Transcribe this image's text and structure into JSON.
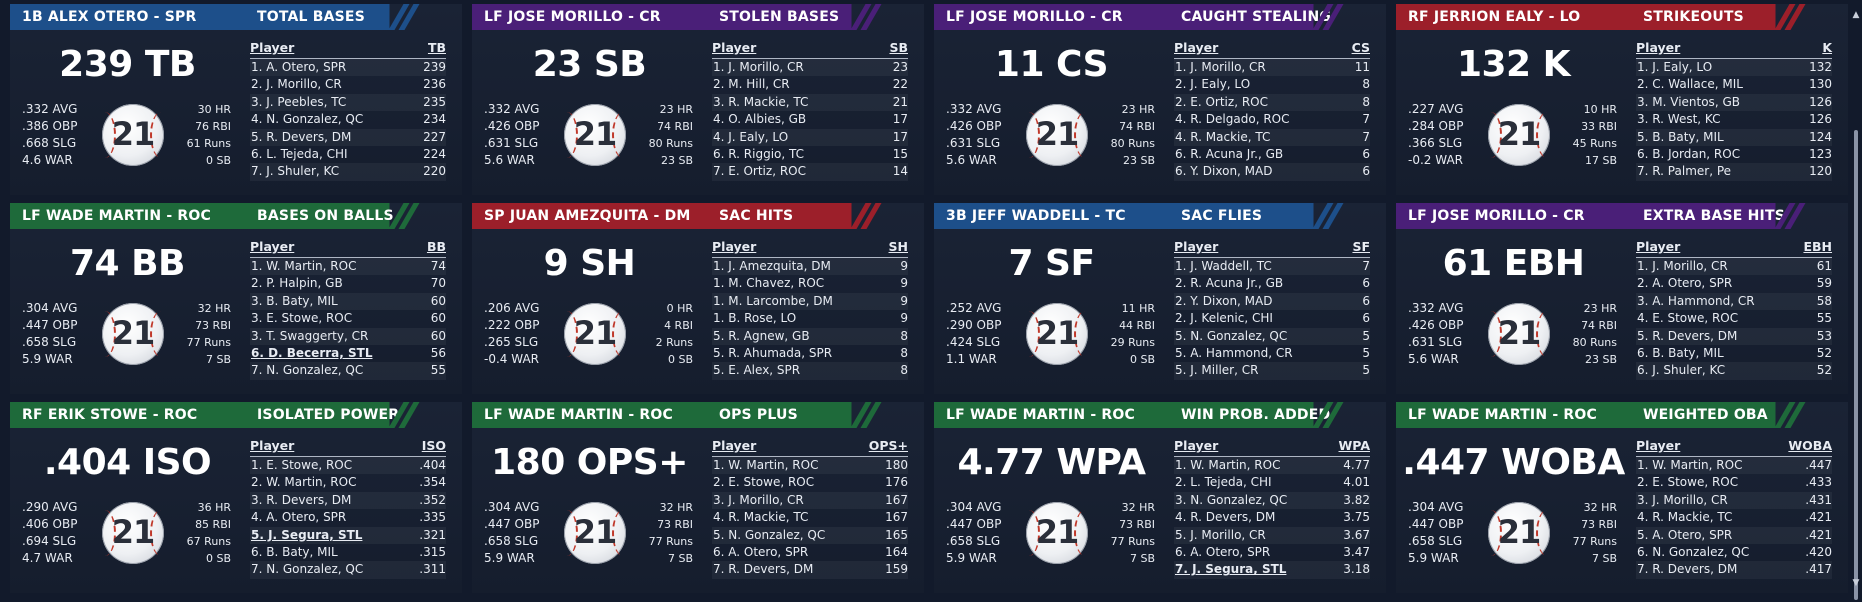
{
  "cards": [
    {
      "player": "1B ALEX OTERO - SPR",
      "category": "TOTAL BASES",
      "theme": "#1d4f8a",
      "big_value": "239 TB",
      "left_stats": [
        ".332 AVG",
        ".386 OBP",
        ".668 SLG",
        "4.6 WAR"
      ],
      "right_stats": [
        "30 HR",
        "76 RBI",
        "61 Runs",
        "0 SB"
      ],
      "jersey_number": "21",
      "col_player": "Player",
      "col_stat": "TB",
      "rows": [
        {
          "name": "1. A. Otero, SPR",
          "value": "239",
          "highlight": false
        },
        {
          "name": "2. J. Morillo, CR",
          "value": "236",
          "highlight": false
        },
        {
          "name": "3. J. Peebles, TC",
          "value": "235",
          "highlight": false
        },
        {
          "name": "4. N. Gonzalez, QC",
          "value": "234",
          "highlight": false
        },
        {
          "name": "5. R. Devers, DM",
          "value": "227",
          "highlight": false
        },
        {
          "name": "6. L. Tejeda, CHI",
          "value": "224",
          "highlight": false
        },
        {
          "name": "7. J. Shuler, KC",
          "value": "220",
          "highlight": false
        }
      ]
    },
    {
      "player": "LF JOSE MORILLO - CR",
      "category": "STOLEN BASES",
      "theme": "#4a1f78",
      "big_value": "23 SB",
      "left_stats": [
        ".332 AVG",
        ".426 OBP",
        ".631 SLG",
        "5.6 WAR"
      ],
      "right_stats": [
        "23 HR",
        "74 RBI",
        "80 Runs",
        "23 SB"
      ],
      "jersey_number": "21",
      "col_player": "Player",
      "col_stat": "SB",
      "rows": [
        {
          "name": "1. J. Morillo, CR",
          "value": "23",
          "highlight": false
        },
        {
          "name": "2. M. Hill, CR",
          "value": "22",
          "highlight": false
        },
        {
          "name": "3. R. Mackie, TC",
          "value": "21",
          "highlight": false
        },
        {
          "name": "4. O. Albies, GB",
          "value": "17",
          "highlight": false
        },
        {
          "name": "4. J. Ealy, LO",
          "value": "17",
          "highlight": false
        },
        {
          "name": "6. R. Riggio, TC",
          "value": "15",
          "highlight": false
        },
        {
          "name": "7. E. Ortiz, ROC",
          "value": "14",
          "highlight": false
        }
      ]
    },
    {
      "player": "LF JOSE MORILLO - CR",
      "category": "CAUGHT STEALING",
      "theme": "#4a1f78",
      "big_value": "11 CS",
      "left_stats": [
        ".332 AVG",
        ".426 OBP",
        ".631 SLG",
        "5.6 WAR"
      ],
      "right_stats": [
        "23 HR",
        "74 RBI",
        "80 Runs",
        "23 SB"
      ],
      "jersey_number": "21",
      "col_player": "Player",
      "col_stat": "CS",
      "rows": [
        {
          "name": "1. J. Morillo, CR",
          "value": "11",
          "highlight": false
        },
        {
          "name": "2. J. Ealy, LO",
          "value": "8",
          "highlight": false
        },
        {
          "name": "2. E. Ortiz, ROC",
          "value": "8",
          "highlight": false
        },
        {
          "name": "4. R. Delgado, ROC",
          "value": "7",
          "highlight": false
        },
        {
          "name": "4. R. Mackie, TC",
          "value": "7",
          "highlight": false
        },
        {
          "name": "6. R. Acuna Jr., GB",
          "value": "6",
          "highlight": false
        },
        {
          "name": "6. Y. Dixon, MAD",
          "value": "6",
          "highlight": false
        }
      ]
    },
    {
      "player": "RF JERRION EALY - LO",
      "category": "STRIKEOUTS",
      "theme": "#9c1f2a",
      "big_value": "132 K",
      "left_stats": [
        ".227 AVG",
        ".284 OBP",
        ".366 SLG",
        "-0.2 WAR"
      ],
      "right_stats": [
        "10 HR",
        "33 RBI",
        "45 Runs",
        "17 SB"
      ],
      "jersey_number": "21",
      "col_player": "Player",
      "col_stat": "K",
      "rows": [
        {
          "name": "1. J. Ealy, LO",
          "value": "132",
          "highlight": false
        },
        {
          "name": "2. C. Wallace, MIL",
          "value": "130",
          "highlight": false
        },
        {
          "name": "3. M. Vientos, GB",
          "value": "126",
          "highlight": false
        },
        {
          "name": "3. R. West, KC",
          "value": "126",
          "highlight": false
        },
        {
          "name": "5. B. Baty, MIL",
          "value": "124",
          "highlight": false
        },
        {
          "name": "6. B. Jordan, ROC",
          "value": "123",
          "highlight": false
        },
        {
          "name": "7. R. Palmer, Pe",
          "value": "120",
          "highlight": false
        }
      ]
    },
    {
      "player": "LF WADE MARTIN - ROC",
      "category": "BASES ON BALLS",
      "theme": "#1e6a3a",
      "big_value": "74 BB",
      "left_stats": [
        ".304 AVG",
        ".447 OBP",
        ".658 SLG",
        "5.9 WAR"
      ],
      "right_stats": [
        "32 HR",
        "73 RBI",
        "77 Runs",
        "7 SB"
      ],
      "jersey_number": "21",
      "col_player": "Player",
      "col_stat": "BB",
      "rows": [
        {
          "name": "1. W. Martin, ROC",
          "value": "74",
          "highlight": false
        },
        {
          "name": "2. P. Halpin, GB",
          "value": "70",
          "highlight": false
        },
        {
          "name": "3. B. Baty, MIL",
          "value": "60",
          "highlight": false
        },
        {
          "name": "3. E. Stowe, ROC",
          "value": "60",
          "highlight": false
        },
        {
          "name": "3. T. Swaggerty, CR",
          "value": "60",
          "highlight": false
        },
        {
          "name": "6. D. Becerra, STL",
          "value": "56",
          "highlight": true
        },
        {
          "name": "7. N. Gonzalez, QC",
          "value": "55",
          "highlight": false
        }
      ]
    },
    {
      "player": "SP JUAN AMEZQUITA - DM",
      "category": "SAC HITS",
      "theme": "#9c1f2a",
      "big_value": "9 SH",
      "left_stats": [
        ".206 AVG",
        ".222 OBP",
        ".265 SLG",
        "-0.4 WAR"
      ],
      "right_stats": [
        "0 HR",
        "4 RBI",
        "2 Runs",
        "0 SB"
      ],
      "jersey_number": "21",
      "col_player": "Player",
      "col_stat": "SH",
      "rows": [
        {
          "name": "1. J. Amezquita, DM",
          "value": "9",
          "highlight": false
        },
        {
          "name": "1. M. Chavez, ROC",
          "value": "9",
          "highlight": false
        },
        {
          "name": "1. M. Larcombe, DM",
          "value": "9",
          "highlight": false
        },
        {
          "name": "1. B. Rose, LO",
          "value": "9",
          "highlight": false
        },
        {
          "name": "5. R. Agnew, GB",
          "value": "8",
          "highlight": false
        },
        {
          "name": "5. R. Ahumada, SPR",
          "value": "8",
          "highlight": false
        },
        {
          "name": "5. E. Alex, SPR",
          "value": "8",
          "highlight": false
        }
      ]
    },
    {
      "player": "3B JEFF WADDELL - TC",
      "category": "SAC FLIES",
      "theme": "#1d4f8a",
      "big_value": "7 SF",
      "left_stats": [
        ".252 AVG",
        ".290 OBP",
        ".424 SLG",
        "1.1 WAR"
      ],
      "right_stats": [
        "11 HR",
        "44 RBI",
        "29 Runs",
        "0 SB"
      ],
      "jersey_number": "21",
      "col_player": "Player",
      "col_stat": "SF",
      "rows": [
        {
          "name": "1. J. Waddell, TC",
          "value": "7",
          "highlight": false
        },
        {
          "name": "2. R. Acuna Jr., GB",
          "value": "6",
          "highlight": false
        },
        {
          "name": "2. Y. Dixon, MAD",
          "value": "6",
          "highlight": false
        },
        {
          "name": "2. J. Kelenic, CHI",
          "value": "6",
          "highlight": false
        },
        {
          "name": "5. N. Gonzalez, QC",
          "value": "5",
          "highlight": false
        },
        {
          "name": "5. A. Hammond, CR",
          "value": "5",
          "highlight": false
        },
        {
          "name": "5. J. Miller, CR",
          "value": "5",
          "highlight": false
        }
      ]
    },
    {
      "player": "LF JOSE MORILLO - CR",
      "category": "EXTRA BASE HITS",
      "theme": "#4a1f78",
      "big_value": "61 EBH",
      "left_stats": [
        ".332 AVG",
        ".426 OBP",
        ".631 SLG",
        "5.6 WAR"
      ],
      "right_stats": [
        "23 HR",
        "74 RBI",
        "80 Runs",
        "23 SB"
      ],
      "jersey_number": "21",
      "col_player": "Player",
      "col_stat": "EBH",
      "rows": [
        {
          "name": "1. J. Morillo, CR",
          "value": "61",
          "highlight": false
        },
        {
          "name": "2. A. Otero, SPR",
          "value": "59",
          "highlight": false
        },
        {
          "name": "3. A. Hammond, CR",
          "value": "58",
          "highlight": false
        },
        {
          "name": "4. E. Stowe, ROC",
          "value": "55",
          "highlight": false
        },
        {
          "name": "5. R. Devers, DM",
          "value": "53",
          "highlight": false
        },
        {
          "name": "6. B. Baty, MIL",
          "value": "52",
          "highlight": false
        },
        {
          "name": "6. J. Shuler, KC",
          "value": "52",
          "highlight": false
        }
      ]
    },
    {
      "player": "RF ERIK STOWE - ROC",
      "category": "ISOLATED POWER",
      "theme": "#1e6a3a",
      "big_value": ".404 ISO",
      "left_stats": [
        ".290 AVG",
        ".406 OBP",
        ".694 SLG",
        "4.7 WAR"
      ],
      "right_stats": [
        "36 HR",
        "85 RBI",
        "67 Runs",
        "0 SB"
      ],
      "jersey_number": "21",
      "col_player": "Player",
      "col_stat": "ISO",
      "rows": [
        {
          "name": "1. E. Stowe, ROC",
          "value": ".404",
          "highlight": false
        },
        {
          "name": "2. W. Martin, ROC",
          "value": ".354",
          "highlight": false
        },
        {
          "name": "3. R. Devers, DM",
          "value": ".352",
          "highlight": false
        },
        {
          "name": "4. A. Otero, SPR",
          "value": ".335",
          "highlight": false
        },
        {
          "name": "5. J. Segura, STL",
          "value": ".321",
          "highlight": true
        },
        {
          "name": "6. B. Baty, MIL",
          "value": ".315",
          "highlight": false
        },
        {
          "name": "7. N. Gonzalez, QC",
          "value": ".311",
          "highlight": false
        }
      ]
    },
    {
      "player": "LF WADE MARTIN - ROC",
      "category": "OPS PLUS",
      "theme": "#1e6a3a",
      "big_value": "180 OPS+",
      "left_stats": [
        ".304 AVG",
        ".447 OBP",
        ".658 SLG",
        "5.9 WAR"
      ],
      "right_stats": [
        "32 HR",
        "73 RBI",
        "77 Runs",
        "7 SB"
      ],
      "jersey_number": "21",
      "col_player": "Player",
      "col_stat": "OPS+",
      "rows": [
        {
          "name": "1. W. Martin, ROC",
          "value": "180",
          "highlight": false
        },
        {
          "name": "2. E. Stowe, ROC",
          "value": "176",
          "highlight": false
        },
        {
          "name": "3. J. Morillo, CR",
          "value": "167",
          "highlight": false
        },
        {
          "name": "4. R. Mackie, TC",
          "value": "167",
          "highlight": false
        },
        {
          "name": "5. N. Gonzalez, QC",
          "value": "165",
          "highlight": false
        },
        {
          "name": "6. A. Otero, SPR",
          "value": "164",
          "highlight": false
        },
        {
          "name": "7. R. Devers, DM",
          "value": "159",
          "highlight": false
        }
      ]
    },
    {
      "player": "LF WADE MARTIN - ROC",
      "category": "WIN PROB. ADDED",
      "theme": "#1e6a3a",
      "big_value": "4.77 WPA",
      "left_stats": [
        ".304 AVG",
        ".447 OBP",
        ".658 SLG",
        "5.9 WAR"
      ],
      "right_stats": [
        "32 HR",
        "73 RBI",
        "77 Runs",
        "7 SB"
      ],
      "jersey_number": "21",
      "col_player": "Player",
      "col_stat": "WPA",
      "rows": [
        {
          "name": "1. W. Martin, ROC",
          "value": "4.77",
          "highlight": false
        },
        {
          "name": "2. L. Tejeda, CHI",
          "value": "4.01",
          "highlight": false
        },
        {
          "name": "3. N. Gonzalez, QC",
          "value": "3.82",
          "highlight": false
        },
        {
          "name": "4. R. Devers, DM",
          "value": "3.75",
          "highlight": false
        },
        {
          "name": "5. J. Morillo, CR",
          "value": "3.67",
          "highlight": false
        },
        {
          "name": "6. A. Otero, SPR",
          "value": "3.47",
          "highlight": false
        },
        {
          "name": "7. J. Segura, STL",
          "value": "3.18",
          "highlight": true
        }
      ]
    },
    {
      "player": "LF WADE MARTIN - ROC",
      "category": "WEIGHTED OBA",
      "theme": "#1e6a3a",
      "big_value": ".447 WOBA",
      "left_stats": [
        ".304 AVG",
        ".447 OBP",
        ".658 SLG",
        "5.9 WAR"
      ],
      "right_stats": [
        "32 HR",
        "73 RBI",
        "77 Runs",
        "7 SB"
      ],
      "jersey_number": "21",
      "col_player": "Player",
      "col_stat": "WOBA",
      "rows": [
        {
          "name": "1. W. Martin, ROC",
          "value": ".447",
          "highlight": false
        },
        {
          "name": "2. E. Stowe, ROC",
          "value": ".433",
          "highlight": false
        },
        {
          "name": "3. J. Morillo, CR",
          "value": ".431",
          "highlight": false
        },
        {
          "name": "4. R. Mackie, TC",
          "value": ".421",
          "highlight": false
        },
        {
          "name": "5. A. Otero, SPR",
          "value": ".421",
          "highlight": false
        },
        {
          "name": "6. N. Gonzalez, QC",
          "value": ".420",
          "highlight": false
        },
        {
          "name": "7. R. Devers, DM",
          "value": ".417",
          "highlight": false
        }
      ]
    }
  ],
  "scrollbar": {
    "up_arrow": "▲",
    "down_arrow": "▼"
  }
}
